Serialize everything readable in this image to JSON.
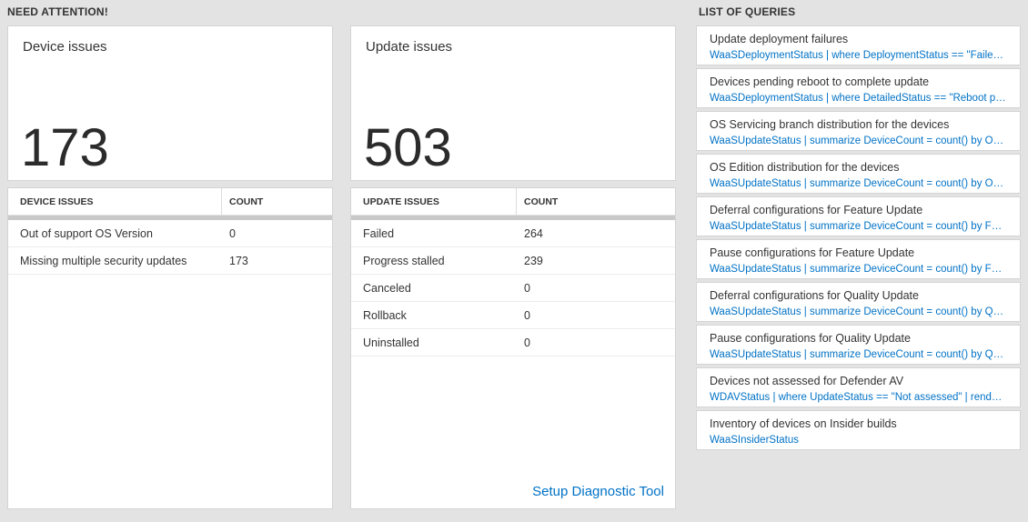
{
  "section_need_attention": {
    "label": "NEED ATTENTION!"
  },
  "section_queries": {
    "label": "LIST OF QUERIES"
  },
  "device": {
    "title": "Device issues",
    "count": "173",
    "table": {
      "col_issue": "DEVICE ISSUES",
      "col_count": "COUNT",
      "rows": [
        {
          "issue": "Out of support OS Version",
          "count": "0"
        },
        {
          "issue": "Missing multiple security updates",
          "count": "173"
        }
      ]
    }
  },
  "update": {
    "title": "Update issues",
    "count": "503",
    "table": {
      "col_issue": "UPDATE ISSUES",
      "col_count": "COUNT",
      "rows": [
        {
          "issue": "Failed",
          "count": "264"
        },
        {
          "issue": "Progress stalled",
          "count": "239"
        },
        {
          "issue": "Canceled",
          "count": "0"
        },
        {
          "issue": "Rollback",
          "count": "0"
        },
        {
          "issue": "Uninstalled",
          "count": "0"
        }
      ]
    },
    "footer_link": "Setup Diagnostic Tool"
  },
  "queries": {
    "items": [
      {
        "title": "Update deployment failures",
        "query": "WaaSDeploymentStatus | where DeploymentStatus == \"Failed\" |..."
      },
      {
        "title": "Devices pending reboot to complete update",
        "query": "WaaSDeploymentStatus | where DetailedStatus == \"Reboot pend..."
      },
      {
        "title": "OS Servicing branch distribution for the devices",
        "query": "WaaSUpdateStatus | summarize DeviceCount = count() by OSSer..."
      },
      {
        "title": "OS Edition distribution for the devices",
        "query": "WaaSUpdateStatus | summarize DeviceCount = count() by OSEdit..."
      },
      {
        "title": "Deferral configurations for Feature Update",
        "query": "WaaSUpdateStatus | summarize DeviceCount = count() by Featur..."
      },
      {
        "title": "Pause configurations for Feature Update",
        "query": "WaaSUpdateStatus | summarize DeviceCount = count() by Featur..."
      },
      {
        "title": "Deferral configurations for Quality Update",
        "query": "WaaSUpdateStatus | summarize DeviceCount = count() by Qualit..."
      },
      {
        "title": "Pause configurations for Quality Update",
        "query": "WaaSUpdateStatus | summarize DeviceCount = count() by Qualit..."
      },
      {
        "title": "Devices not assessed for Defender AV",
        "query": "WDAVStatus | where UpdateStatus == \"Not assessed\" | render ta..."
      },
      {
        "title": "Inventory of devices on Insider builds",
        "query": "WaaSInsiderStatus"
      }
    ]
  },
  "colors": {
    "accent_blue": "#0072c6",
    "text_dark": "#333333",
    "page_bg": "#e3e3e3"
  }
}
